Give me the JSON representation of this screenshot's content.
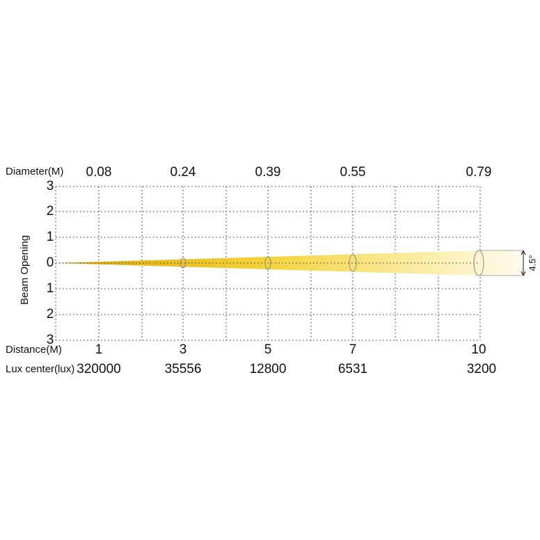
{
  "diagram": {
    "y_axis_title": "Beam Opening",
    "y_labels": [
      "3",
      "2",
      "1",
      "0",
      "1",
      "2",
      "3"
    ],
    "diameter": {
      "label": "Diameter(M)",
      "values": [
        "0.08",
        "0.24",
        "0.39",
        "0.55",
        "0.79"
      ]
    },
    "distance": {
      "label": "Distance(M)",
      "values": [
        "1",
        "3",
        "5",
        "7",
        "10"
      ]
    },
    "lux": {
      "label": "Lux center(lux)",
      "values": [
        "320000",
        "35556",
        "12800",
        "6531",
        "3200"
      ]
    },
    "beam_angle": "4.5°"
  }
}
